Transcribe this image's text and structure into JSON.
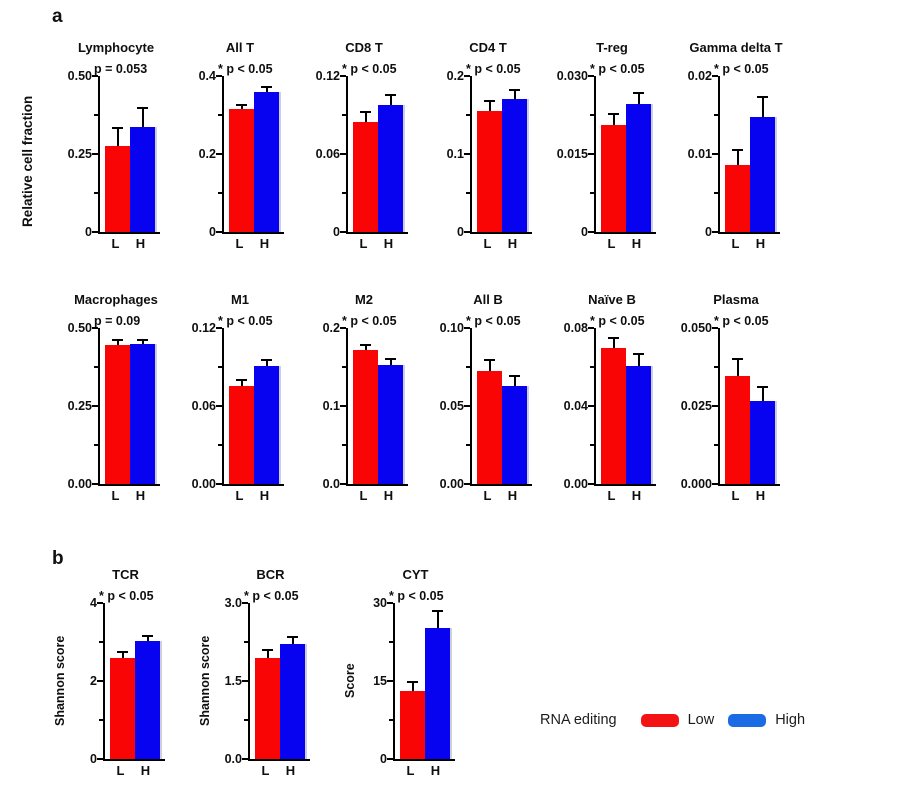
{
  "figure": {
    "panel_a_label": "a",
    "panel_b_label": "b",
    "row1_ylabel": "Relative cell fraction",
    "colors": {
      "low": "#fa0505",
      "high": "#0702f0",
      "high_edge": "#cfcfdc"
    },
    "legend": {
      "title": "RNA editing",
      "items": [
        {
          "label": "Low",
          "color": "#f31214"
        },
        {
          "label": "High",
          "color": "#1b6ce4"
        }
      ]
    }
  },
  "chart_data": [
    {
      "type": "bar",
      "panel": "a",
      "row": 1,
      "title": "Lymphocyte",
      "p_label": "p = 0.053",
      "significant": false,
      "categories": [
        "L",
        "H"
      ],
      "ylabel": "",
      "ylim": [
        0,
        0.5
      ],
      "yticks": [
        {
          "value": 0,
          "label": "0"
        },
        {
          "value": 0.25,
          "label": "0.25"
        },
        {
          "value": 0.5,
          "label": "0.50"
        }
      ],
      "series": [
        {
          "name": "Low",
          "value": 0.275,
          "error": 0.06
        },
        {
          "name": "High",
          "value": 0.335,
          "error": 0.065
        }
      ]
    },
    {
      "type": "bar",
      "panel": "a",
      "row": 1,
      "title": "All T",
      "p_label": "* p < 0.05",
      "significant": true,
      "categories": [
        "L",
        "H"
      ],
      "ylabel": "",
      "ylim": [
        0,
        0.4
      ],
      "yticks": [
        {
          "value": 0,
          "label": "0"
        },
        {
          "value": 0.2,
          "label": "0.2"
        },
        {
          "value": 0.4,
          "label": "0.4"
        }
      ],
      "series": [
        {
          "name": "Low",
          "value": 0.315,
          "error": 0.013
        },
        {
          "name": "High",
          "value": 0.36,
          "error": 0.014
        }
      ]
    },
    {
      "type": "bar",
      "panel": "a",
      "row": 1,
      "title": "CD8 T",
      "p_label": "* p < 0.05",
      "significant": true,
      "categories": [
        "L",
        "H"
      ],
      "ylabel": "",
      "ylim": [
        0,
        0.12
      ],
      "yticks": [
        {
          "value": 0,
          "label": "0"
        },
        {
          "value": 0.06,
          "label": "0.06"
        },
        {
          "value": 0.12,
          "label": "0.12"
        }
      ],
      "series": [
        {
          "name": "Low",
          "value": 0.085,
          "error": 0.008
        },
        {
          "name": "High",
          "value": 0.098,
          "error": 0.008
        }
      ]
    },
    {
      "type": "bar",
      "panel": "a",
      "row": 1,
      "title": "CD4 T",
      "p_label": "* p < 0.05",
      "significant": true,
      "categories": [
        "L",
        "H"
      ],
      "ylabel": "",
      "ylim": [
        0,
        0.2
      ],
      "yticks": [
        {
          "value": 0,
          "label": "0"
        },
        {
          "value": 0.1,
          "label": "0.1"
        },
        {
          "value": 0.2,
          "label": "0.2"
        }
      ],
      "series": [
        {
          "name": "Low",
          "value": 0.155,
          "error": 0.014
        },
        {
          "name": "High",
          "value": 0.171,
          "error": 0.012
        }
      ]
    },
    {
      "type": "bar",
      "panel": "a",
      "row": 1,
      "title": "T-reg",
      "p_label": "* p < 0.05",
      "significant": true,
      "categories": [
        "L",
        "H"
      ],
      "ylabel": "",
      "ylim": [
        0,
        0.03
      ],
      "yticks": [
        {
          "value": 0,
          "label": "0"
        },
        {
          "value": 0.015,
          "label": "0.015"
        },
        {
          "value": 0.03,
          "label": "0.030"
        }
      ],
      "series": [
        {
          "name": "Low",
          "value": 0.0205,
          "error": 0.0024
        },
        {
          "name": "High",
          "value": 0.0246,
          "error": 0.0024
        }
      ]
    },
    {
      "type": "bar",
      "panel": "a",
      "row": 1,
      "title": "Gamma delta T",
      "p_label": "* p < 0.05",
      "significant": true,
      "categories": [
        "L",
        "H"
      ],
      "ylabel": "",
      "ylim": [
        0,
        0.02
      ],
      "yticks": [
        {
          "value": 0,
          "label": "0"
        },
        {
          "value": 0.01,
          "label": "0.01"
        },
        {
          "value": 0.02,
          "label": "0.02"
        }
      ],
      "series": [
        {
          "name": "Low",
          "value": 0.0086,
          "error": 0.002
        },
        {
          "name": "High",
          "value": 0.0148,
          "error": 0.0026
        }
      ]
    },
    {
      "type": "bar",
      "panel": "a",
      "row": 2,
      "title": "Macrophages",
      "p_label": "p = 0.09",
      "significant": false,
      "categories": [
        "L",
        "H"
      ],
      "ylabel": "",
      "ylim": [
        0,
        0.5
      ],
      "yticks": [
        {
          "value": 0,
          "label": "0.00"
        },
        {
          "value": 0.25,
          "label": "0.25"
        },
        {
          "value": 0.5,
          "label": "0.50"
        }
      ],
      "series": [
        {
          "name": "Low",
          "value": 0.445,
          "error": 0.02
        },
        {
          "name": "High",
          "value": 0.448,
          "error": 0.018
        }
      ]
    },
    {
      "type": "bar",
      "panel": "a",
      "row": 2,
      "title": "M1",
      "p_label": "* p < 0.05",
      "significant": true,
      "categories": [
        "L",
        "H"
      ],
      "ylabel": "",
      "ylim": [
        0,
        0.12
      ],
      "yticks": [
        {
          "value": 0,
          "label": "0.00"
        },
        {
          "value": 0.06,
          "label": "0.06"
        },
        {
          "value": 0.12,
          "label": "0.12"
        }
      ],
      "series": [
        {
          "name": "Low",
          "value": 0.0755,
          "error": 0.005
        },
        {
          "name": "High",
          "value": 0.091,
          "error": 0.0055
        }
      ]
    },
    {
      "type": "bar",
      "panel": "a",
      "row": 2,
      "title": "M2",
      "p_label": "* p < 0.05",
      "significant": true,
      "categories": [
        "L",
        "H"
      ],
      "ylabel": "",
      "ylim": [
        0,
        0.2
      ],
      "yticks": [
        {
          "value": 0,
          "label": "0.0"
        },
        {
          "value": 0.1,
          "label": "0.1"
        },
        {
          "value": 0.2,
          "label": "0.2"
        }
      ],
      "series": [
        {
          "name": "Low",
          "value": 0.172,
          "error": 0.008
        },
        {
          "name": "High",
          "value": 0.152,
          "error": 0.009
        }
      ]
    },
    {
      "type": "bar",
      "panel": "a",
      "row": 2,
      "title": "All B",
      "p_label": "* p < 0.05",
      "significant": true,
      "categories": [
        "L",
        "H"
      ],
      "ylabel": "",
      "ylim": [
        0,
        0.1
      ],
      "yticks": [
        {
          "value": 0,
          "label": "0.00"
        },
        {
          "value": 0.05,
          "label": "0.05"
        },
        {
          "value": 0.1,
          "label": "0.10"
        }
      ],
      "series": [
        {
          "name": "Low",
          "value": 0.0725,
          "error": 0.0078
        },
        {
          "name": "High",
          "value": 0.063,
          "error": 0.0066
        }
      ]
    },
    {
      "type": "bar",
      "panel": "a",
      "row": 2,
      "title": "Naïve B",
      "p_label": "* p < 0.05",
      "significant": true,
      "categories": [
        "L",
        "H"
      ],
      "ylabel": "",
      "ylim": [
        0,
        0.08
      ],
      "yticks": [
        {
          "value": 0,
          "label": "0.00"
        },
        {
          "value": 0.04,
          "label": "0.04"
        },
        {
          "value": 0.08,
          "label": "0.08"
        }
      ],
      "series": [
        {
          "name": "Low",
          "value": 0.0695,
          "error": 0.006
        },
        {
          "name": "High",
          "value": 0.0605,
          "error": 0.0067
        }
      ]
    },
    {
      "type": "bar",
      "panel": "a",
      "row": 2,
      "title": "Plasma",
      "p_label": "* p < 0.05",
      "significant": true,
      "categories": [
        "L",
        "H"
      ],
      "ylabel": "",
      "ylim": [
        0,
        0.05
      ],
      "yticks": [
        {
          "value": 0,
          "label": "0.000"
        },
        {
          "value": 0.025,
          "label": "0.025"
        },
        {
          "value": 0.05,
          "label": "0.050"
        }
      ],
      "series": [
        {
          "name": "Low",
          "value": 0.0345,
          "error": 0.0059
        },
        {
          "name": "High",
          "value": 0.0267,
          "error": 0.0046
        }
      ]
    },
    {
      "type": "bar",
      "panel": "b",
      "row": 1,
      "title": "TCR",
      "p_label": "* p < 0.05",
      "significant": true,
      "categories": [
        "L",
        "H"
      ],
      "ylabel": "Shannon score",
      "ylim": [
        0,
        4
      ],
      "yticks": [
        {
          "value": 0,
          "label": "0"
        },
        {
          "value": 2,
          "label": "2"
        },
        {
          "value": 4,
          "label": "4"
        }
      ],
      "series": [
        {
          "name": "Low",
          "value": 2.6,
          "error": 0.16
        },
        {
          "name": "High",
          "value": 3.02,
          "error": 0.17
        }
      ]
    },
    {
      "type": "bar",
      "panel": "b",
      "row": 1,
      "title": "BCR",
      "p_label": "* p < 0.05",
      "significant": true,
      "categories": [
        "L",
        "H"
      ],
      "ylabel": "Shannon score",
      "ylim": [
        0,
        3
      ],
      "yticks": [
        {
          "value": 0,
          "label": "0.0"
        },
        {
          "value": 1.5,
          "label": "1.5"
        },
        {
          "value": 3,
          "label": "3.0"
        }
      ],
      "series": [
        {
          "name": "Low",
          "value": 1.95,
          "error": 0.16
        },
        {
          "name": "High",
          "value": 2.21,
          "error": 0.16
        }
      ]
    },
    {
      "type": "bar",
      "panel": "b",
      "row": 1,
      "title": "CYT",
      "p_label": "* p < 0.05",
      "significant": true,
      "categories": [
        "L",
        "H"
      ],
      "ylabel": "Score",
      "ylim": [
        0,
        30
      ],
      "yticks": [
        {
          "value": 0,
          "label": "0"
        },
        {
          "value": 15,
          "label": "15"
        },
        {
          "value": 30,
          "label": "30"
        }
      ],
      "series": [
        {
          "name": "Low",
          "value": 13.1,
          "error": 1.9
        },
        {
          "name": "High",
          "value": 25.1,
          "error": 3.5
        }
      ]
    }
  ]
}
